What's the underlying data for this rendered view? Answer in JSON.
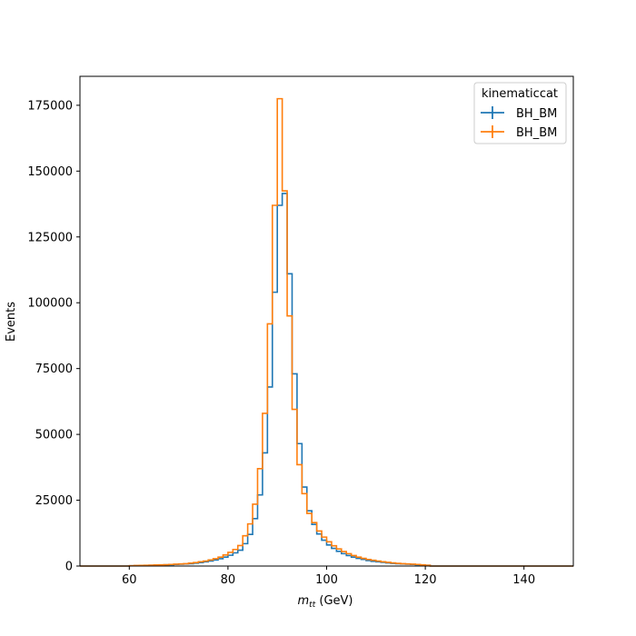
{
  "chart_data": {
    "type": "histogram",
    "xlabel_main": "m",
    "xlabel_sub": "tt",
    "xlabel_unit": " (GeV)",
    "ylabel": "Events",
    "xlim": [
      50,
      150
    ],
    "ylim": [
      0,
      186000
    ],
    "grid": false,
    "legend": {
      "title": "kinematiccat",
      "placement": "top-right"
    },
    "xticks": [
      60,
      80,
      100,
      120,
      140
    ],
    "yticks": [
      0,
      25000,
      50000,
      75000,
      100000,
      125000,
      150000,
      175000
    ],
    "ytick_labels": [
      "0",
      "25000",
      "50000",
      "75000",
      "100000",
      "125000",
      "150000",
      "175000"
    ],
    "bin_edges": [
      50,
      51,
      52,
      53,
      54,
      55,
      56,
      57,
      58,
      59,
      60,
      61,
      62,
      63,
      64,
      65,
      66,
      67,
      68,
      69,
      70,
      71,
      72,
      73,
      74,
      75,
      76,
      77,
      78,
      79,
      80,
      81,
      82,
      83,
      84,
      85,
      86,
      87,
      88,
      89,
      90,
      91,
      92,
      93,
      94,
      95,
      96,
      97,
      98,
      99,
      100,
      101,
      102,
      103,
      104,
      105,
      106,
      107,
      108,
      109,
      110,
      111,
      112,
      113,
      114,
      115,
      116,
      117,
      118,
      119,
      120,
      121,
      122,
      123,
      124,
      125,
      126,
      127,
      128,
      129,
      130,
      131,
      132,
      133,
      134,
      135,
      136,
      137,
      138,
      139,
      140,
      141,
      142,
      143,
      144,
      145,
      146,
      147,
      148,
      149,
      150
    ],
    "series": [
      {
        "name": "BH_BM",
        "color": "#1f77b4",
        "values": [
          0,
          0,
          0,
          0,
          0,
          0,
          0,
          0,
          0,
          0,
          100,
          150,
          200,
          250,
          300,
          350,
          400,
          450,
          500,
          600,
          700,
          800,
          900,
          1100,
          1300,
          1600,
          1900,
          2300,
          2800,
          3400,
          4100,
          5000,
          6000,
          8500,
          12000,
          18000,
          27000,
          43000,
          68000,
          104000,
          137000,
          141500,
          111000,
          73000,
          46500,
          30000,
          21000,
          15800,
          12200,
          9800,
          8000,
          6700,
          5600,
          4700,
          4000,
          3400,
          2900,
          2500,
          2100,
          1800,
          1600,
          1400,
          1200,
          1000,
          900,
          800,
          700,
          600,
          500,
          400,
          300,
          0,
          0,
          0,
          0,
          0,
          0,
          0,
          0,
          0,
          0,
          0,
          0,
          0,
          0,
          0,
          0,
          0,
          0,
          0,
          0,
          0,
          0,
          0,
          0,
          0,
          0,
          0,
          0,
          0
        ]
      },
      {
        "name": "BH_BM",
        "color": "#ff7f0e",
        "values": [
          0,
          0,
          0,
          0,
          0,
          0,
          0,
          0,
          0,
          0,
          120,
          180,
          240,
          300,
          350,
          400,
          450,
          500,
          600,
          700,
          800,
          900,
          1100,
          1300,
          1600,
          1900,
          2300,
          2800,
          3400,
          4200,
          5200,
          6300,
          7800,
          11500,
          16000,
          23500,
          37000,
          58000,
          92000,
          137000,
          177500,
          142500,
          95000,
          59500,
          38500,
          27500,
          20000,
          16500,
          13300,
          11000,
          9200,
          7700,
          6500,
          5500,
          4700,
          4000,
          3400,
          2900,
          2500,
          2200,
          1900,
          1600,
          1400,
          1200,
          1000,
          900,
          800,
          700,
          600,
          450,
          300,
          0,
          0,
          0,
          0,
          0,
          0,
          0,
          0,
          0,
          0,
          0,
          0,
          0,
          0,
          0,
          0,
          0,
          0,
          0,
          0,
          0,
          0,
          0,
          0,
          0,
          0,
          0,
          0,
          0
        ]
      }
    ]
  }
}
